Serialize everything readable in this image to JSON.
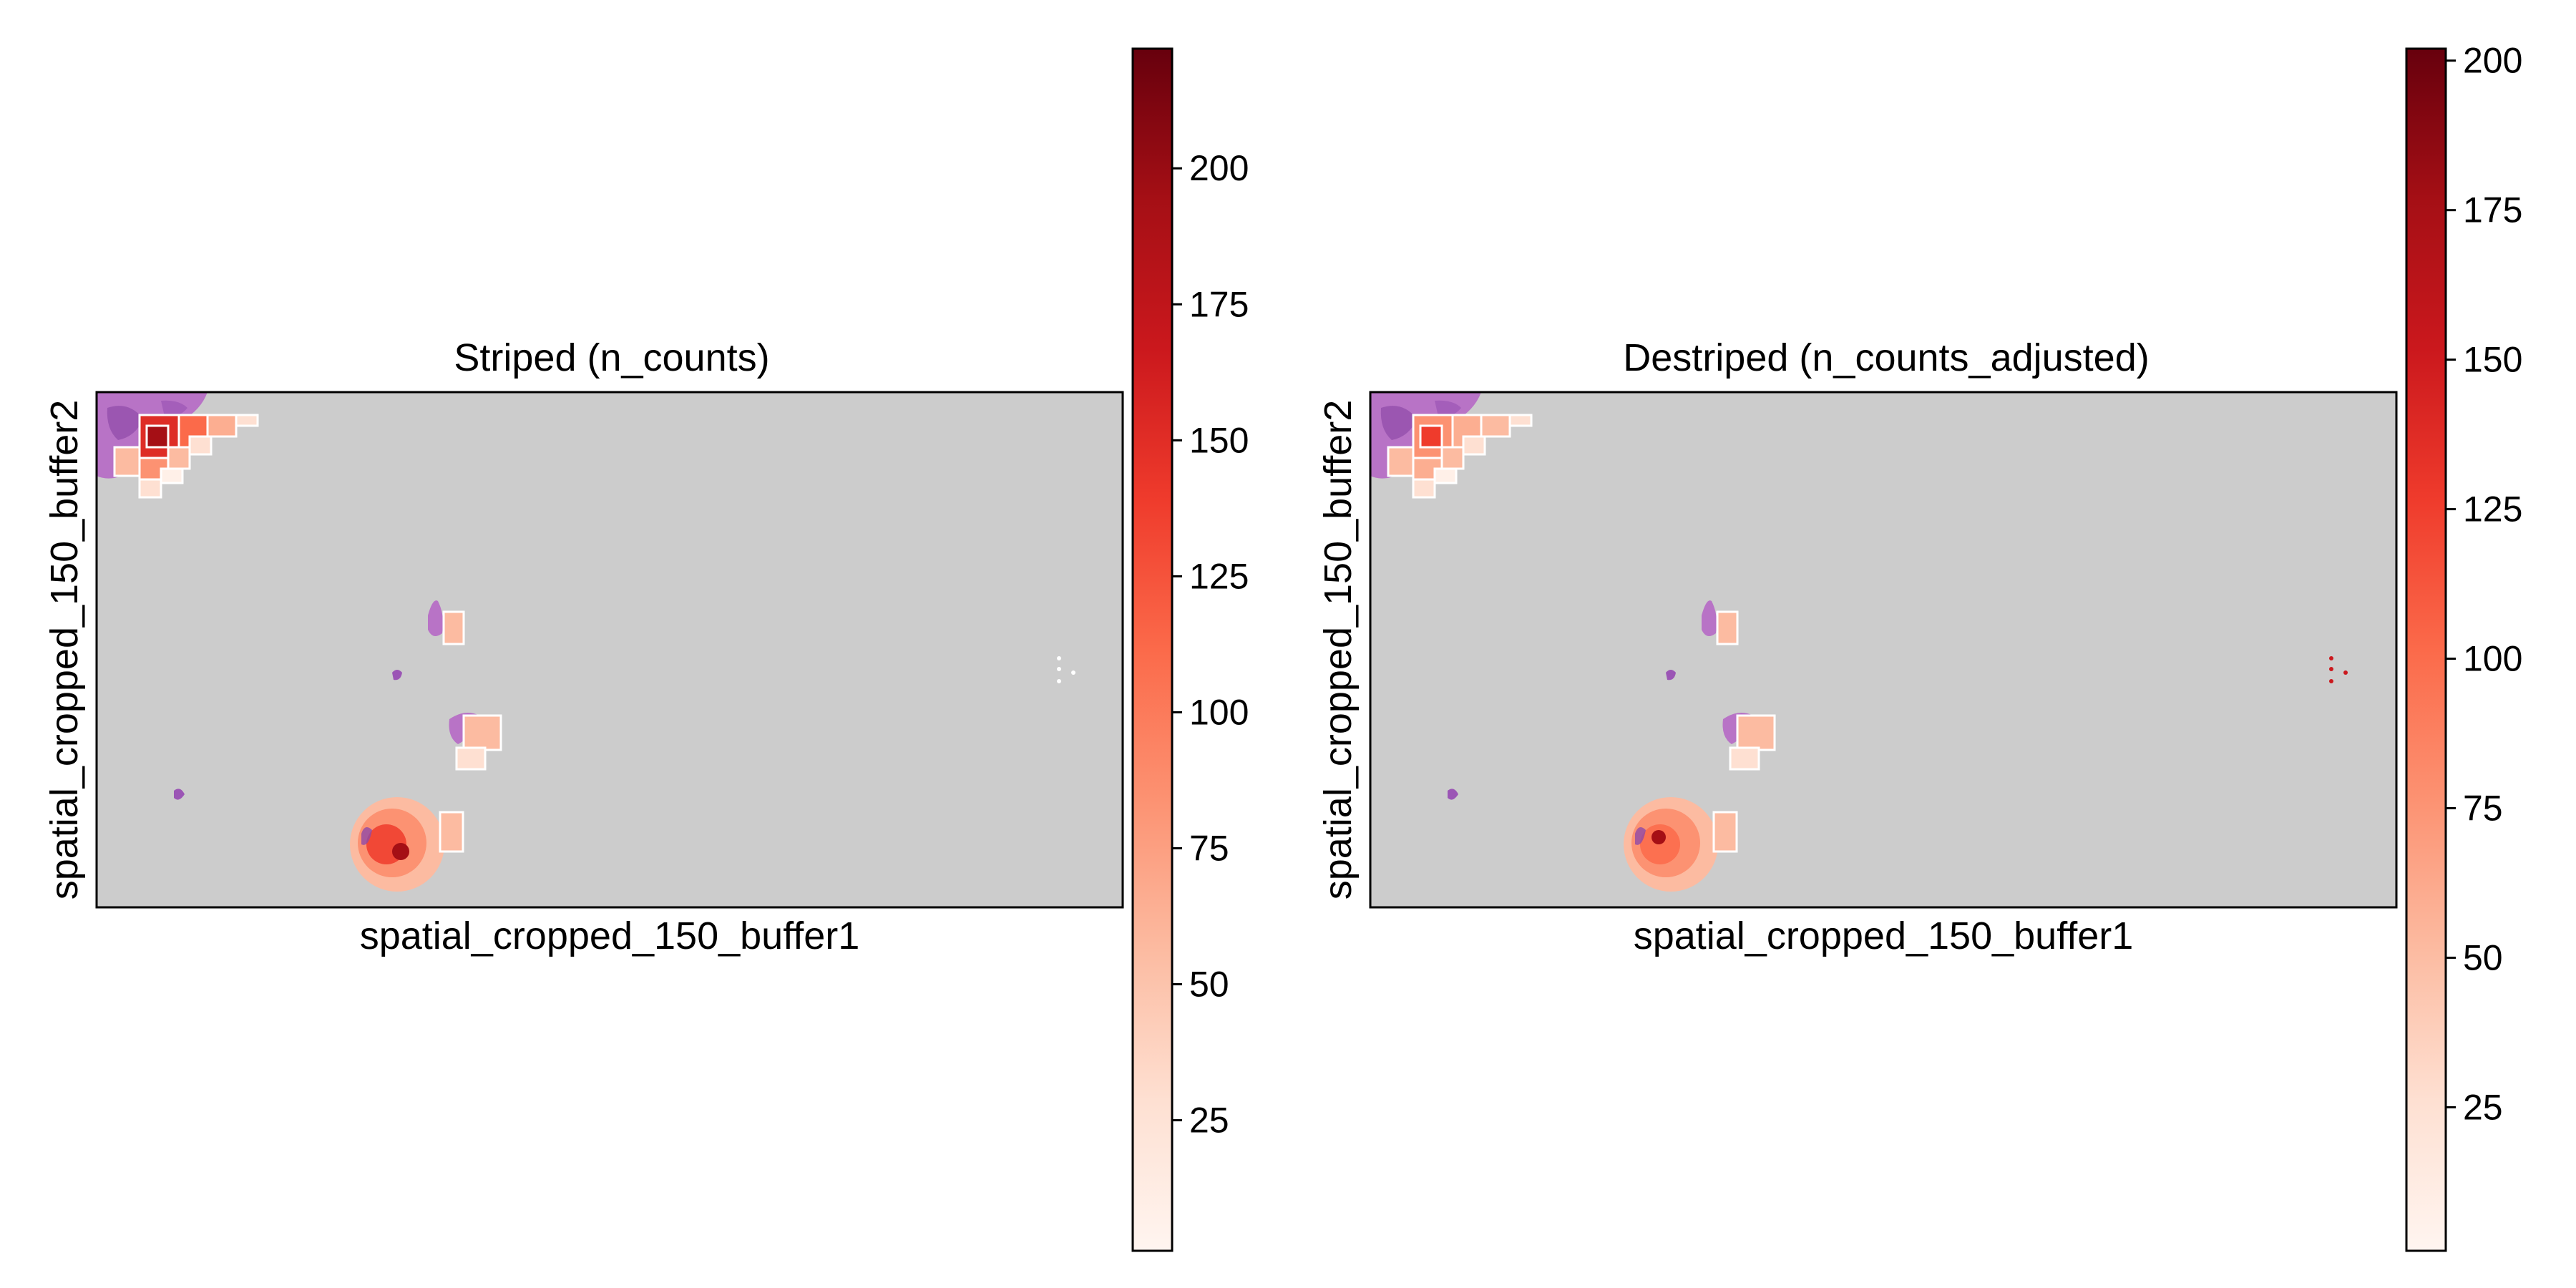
{
  "colors": {
    "background_tissue": "#cccccc",
    "he_stain": "#b873c6",
    "he_stain_dark": "#8e4aa8",
    "colormap": "Reds"
  },
  "chart_data": [
    {
      "type": "heatmap",
      "title": "Striped (n_counts)",
      "xlabel": "spatial_cropped_150_buffer1",
      "ylabel": "spatial_cropped_150_buffer2",
      "colorbar": {
        "range": [
          1,
          222
        ],
        "ticks": [
          25,
          50,
          75,
          100,
          125,
          150,
          175,
          200
        ],
        "colormap": "Reds"
      },
      "grid": false,
      "legend": "right"
    },
    {
      "type": "heatmap",
      "title": "Destriped (n_counts_adjusted)",
      "xlabel": "spatial_cropped_150_buffer1",
      "ylabel": "spatial_cropped_150_buffer2",
      "colorbar": {
        "range": [
          1,
          202
        ],
        "ticks": [
          25,
          50,
          75,
          100,
          125,
          150,
          175,
          200
        ],
        "colormap": "Reds"
      },
      "grid": false,
      "legend": "right"
    }
  ]
}
